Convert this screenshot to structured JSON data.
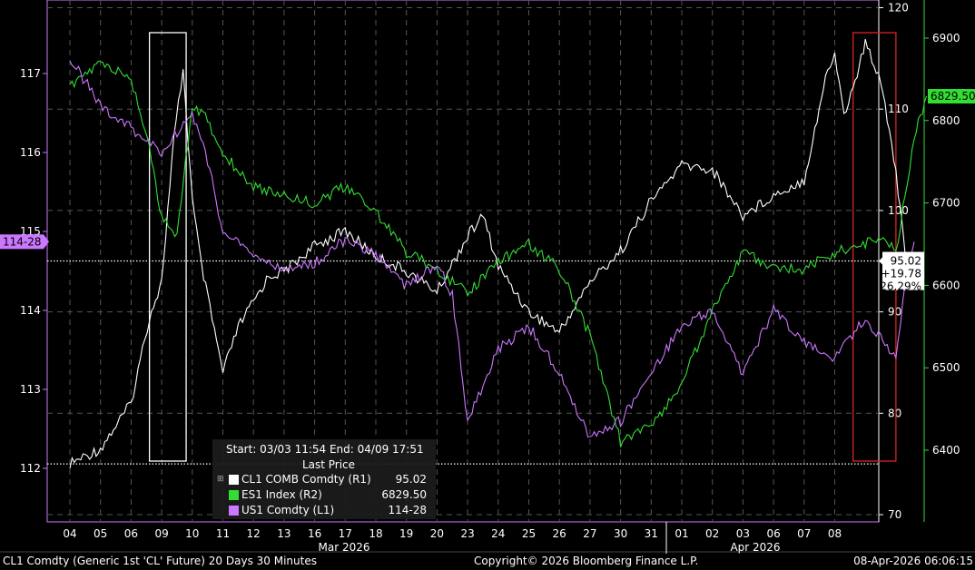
{
  "footer": {
    "left": "CL1 Comdty (Generic 1st 'CL' Future) 20 Days 30 Minutes",
    "center": "Copyright© 2026 Bloomberg Finance L.P.",
    "right": "08-Apr-2026 06:06:15"
  },
  "legend": {
    "range": "Start: 03/03 11:54 End: 04/09 17:51",
    "header": "Last Price",
    "rows": [
      {
        "name": "CL1 COMB Comdty  (R1)",
        "value": "95.02",
        "color": "#ffffff"
      },
      {
        "name": "ES1 Index  (R2)",
        "value": "6829.50",
        "color": "#33dd33"
      },
      {
        "name": "US1 Comdty  (L1)",
        "value": "114-28",
        "color": "#cc77ff"
      }
    ]
  },
  "chart_data": {
    "type": "line",
    "x_dates": [
      "04",
      "05",
      "06",
      "09",
      "10",
      "11",
      "12",
      "13",
      "16",
      "17",
      "18",
      "19",
      "20",
      "23",
      "24",
      "25",
      "26",
      "27",
      "30",
      "31",
      "01",
      "02",
      "03",
      "06",
      "07",
      "08"
    ],
    "month_labels": [
      "Mar 2026",
      "Apr 2026"
    ],
    "axes": {
      "L1": {
        "ticks": [
          112,
          113,
          114,
          115,
          116,
          117
        ],
        "color": "#cc77ff"
      },
      "R1": {
        "ticks": [
          70,
          80,
          90,
          100,
          110,
          120
        ],
        "color": "#ffffff"
      },
      "R2": {
        "ticks": [
          6400,
          6500,
          6600,
          6700,
          6800,
          6900
        ],
        "color": "#33dd33"
      }
    },
    "series": [
      {
        "name": "CL1 COMB Comdty",
        "axis": "R1",
        "color": "#ffffff",
        "points": [
          [
            0,
            75.0
          ],
          [
            1,
            76.5
          ],
          [
            2,
            81.0
          ],
          [
            2.6,
            89.5
          ],
          [
            3,
            93.0
          ],
          [
            3.4,
            107.0
          ],
          [
            3.7,
            114.0
          ],
          [
            4,
            101.0
          ],
          [
            4.3,
            94.5
          ],
          [
            5,
            84.0
          ],
          [
            5.5,
            88.5
          ],
          [
            6,
            91.0
          ],
          [
            6.5,
            93.5
          ],
          [
            7,
            94.0
          ],
          [
            8,
            96.5
          ],
          [
            9,
            98.0
          ],
          [
            10,
            95.5
          ],
          [
            11,
            94.0
          ],
          [
            12,
            92.0
          ],
          [
            13,
            97.5
          ],
          [
            13.5,
            99.5
          ],
          [
            14,
            94.5
          ],
          [
            15,
            90.0
          ],
          [
            16,
            88.0
          ],
          [
            17,
            93.0
          ],
          [
            18,
            96.0
          ],
          [
            19,
            101.0
          ],
          [
            20,
            104.5
          ],
          [
            21,
            104.0
          ],
          [
            22,
            99.5
          ],
          [
            23,
            101.5
          ],
          [
            24,
            103.0
          ],
          [
            24.7,
            113.0
          ],
          [
            25,
            115.5
          ],
          [
            25.3,
            109.5
          ],
          [
            25.6,
            112.0
          ],
          [
            26,
            116.5
          ],
          [
            26.5,
            113.0
          ],
          [
            27,
            104.0
          ],
          [
            27.3,
            95.5
          ],
          [
            27.6,
            95.02
          ]
        ],
        "last": "95.02",
        "change": "+19.78",
        "pct": "26.29%"
      },
      {
        "name": "ES1 Index",
        "axis": "R2",
        "color": "#33dd33",
        "points": [
          [
            0,
            6840
          ],
          [
            1,
            6870
          ],
          [
            2,
            6850
          ],
          [
            2.6,
            6770
          ],
          [
            3,
            6680
          ],
          [
            3.5,
            6660
          ],
          [
            4,
            6820
          ],
          [
            4.5,
            6800
          ],
          [
            5,
            6760
          ],
          [
            6,
            6720
          ],
          [
            7,
            6710
          ],
          [
            8,
            6700
          ],
          [
            9,
            6720
          ],
          [
            10,
            6690
          ],
          [
            11,
            6640
          ],
          [
            12,
            6620
          ],
          [
            13,
            6590
          ],
          [
            14,
            6630
          ],
          [
            15,
            6650
          ],
          [
            16,
            6620
          ],
          [
            17,
            6540
          ],
          [
            18,
            6410
          ],
          [
            19,
            6430
          ],
          [
            20,
            6480
          ],
          [
            21,
            6570
          ],
          [
            22,
            6640
          ],
          [
            23,
            6620
          ],
          [
            24,
            6620
          ],
          [
            25,
            6640
          ],
          [
            26,
            6650
          ],
          [
            26.5,
            6660
          ],
          [
            27,
            6640
          ],
          [
            27.3,
            6710
          ],
          [
            27.6,
            6780
          ],
          [
            28,
            6829.5
          ]
        ],
        "last": "6829.50"
      },
      {
        "name": "US1 Comdty",
        "axis": "L1",
        "color": "#cc77ff",
        "points": [
          [
            0,
            117.2
          ],
          [
            1,
            116.6
          ],
          [
            2,
            116.3
          ],
          [
            3,
            116.0
          ],
          [
            4,
            116.5
          ],
          [
            4.5,
            115.9
          ],
          [
            5,
            115.0
          ],
          [
            6,
            114.7
          ],
          [
            7,
            114.5
          ],
          [
            8,
            114.6
          ],
          [
            9,
            114.9
          ],
          [
            10,
            114.7
          ],
          [
            11,
            114.3
          ],
          [
            12,
            114.6
          ],
          [
            12.5,
            114.2
          ],
          [
            13,
            112.6
          ],
          [
            14,
            113.5
          ],
          [
            15,
            113.8
          ],
          [
            16,
            113.2
          ],
          [
            17,
            112.4
          ],
          [
            18,
            112.6
          ],
          [
            19,
            113.2
          ],
          [
            20,
            113.8
          ],
          [
            21,
            114.0
          ],
          [
            22,
            113.2
          ],
          [
            23,
            114.0
          ],
          [
            24,
            113.6
          ],
          [
            25,
            113.4
          ],
          [
            26,
            113.9
          ],
          [
            27,
            113.4
          ],
          [
            27.3,
            114.3
          ],
          [
            27.6,
            114.87
          ]
        ],
        "last": "114-28"
      }
    ],
    "highlight_boxes": [
      {
        "from": 2.6,
        "to": 3.8,
        "color": "#ffffff"
      },
      {
        "from": 25.6,
        "to": 27.0,
        "color": "#dd2222"
      }
    ],
    "reference_lines": [
      {
        "axis": "R1",
        "value": 95.02,
        "style": "dotted"
      },
      {
        "axis": "R1",
        "value": 75.0,
        "style": "dotted"
      }
    ]
  }
}
